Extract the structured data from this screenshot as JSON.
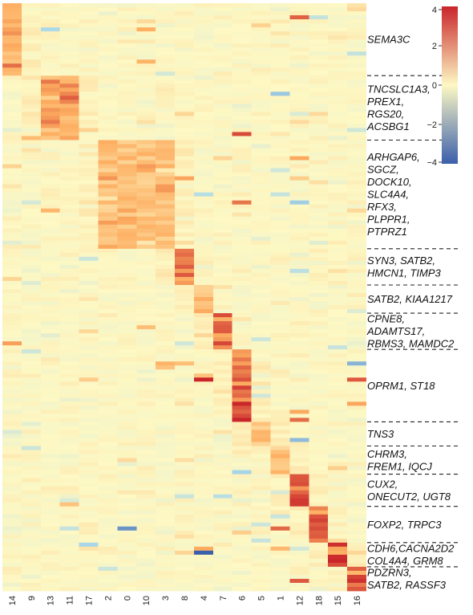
{
  "chart_data": {
    "type": "heatmap",
    "title": "",
    "xlabel": "",
    "ylabel": "",
    "columns": [
      "14",
      "9",
      "13",
      "11",
      "17",
      "2",
      "0",
      "10",
      "3",
      "8",
      "4",
      "7",
      "6",
      "5",
      "1",
      "12",
      "18",
      "15",
      "16"
    ],
    "colorbar": {
      "vmin": -4,
      "vmax": 4,
      "ticks": [
        4,
        2,
        0,
        -2,
        -4
      ],
      "tick_labels": [
        "4",
        "2",
        "0",
        "−2",
        "−4"
      ],
      "colors": {
        "low": "#3a5fab",
        "mid": "#fdf8c4",
        "high": "#c9252a"
      }
    },
    "blocks": [
      {
        "columns": [
          "14"
        ],
        "rows": 18,
        "label_lines": [
          "SEMA3C"
        ],
        "peak": 2.6
      },
      {
        "columns": [
          "13",
          "11"
        ],
        "rows": 16,
        "label_lines": [
          "TNCSLC1A3,",
          "PREX1,",
          "RGS20,",
          "ACSBG1"
        ],
        "peak": 2.8
      },
      {
        "columns": [
          "2",
          "0",
          "10",
          "3"
        ],
        "rows": 27,
        "label_lines": [
          "ARHGAP6,",
          "SGCZ,",
          "DOCK10,",
          "SLC4A4,",
          "RFX3,",
          "PLPPR1,",
          "PTPRZ1"
        ],
        "peak": 2.0
      },
      {
        "columns": [
          "8"
        ],
        "rows": 9,
        "label_lines": [
          "SYN3, SATB2,",
          "HMCN1, TIMP3"
        ],
        "peak": 3.3
      },
      {
        "columns": [
          "4"
        ],
        "rows": 7,
        "label_lines": [
          "SATB2, KIAA1217"
        ],
        "peak": 2.5
      },
      {
        "columns": [
          "7"
        ],
        "rows": 9,
        "label_lines": [
          "CPNE8,",
          "ADAMTS17,",
          "RBMS3, MAMDC2"
        ],
        "peak": 3.4
      },
      {
        "columns": [
          "6"
        ],
        "rows": 18,
        "label_lines": [
          "OPRM1, ST18"
        ],
        "peak": 3.4
      },
      {
        "columns": [
          "5"
        ],
        "rows": 6,
        "label_lines": [
          "TNS3"
        ],
        "peak": 1.6
      },
      {
        "columns": [
          "1"
        ],
        "rows": 7,
        "label_lines": [
          "CHRM3,",
          "FREM1, IQCJ"
        ],
        "peak": 1.7
      },
      {
        "columns": [
          "12"
        ],
        "rows": 8,
        "label_lines": [
          "CUX2,",
          "ONECUT2, UGT8"
        ],
        "peak": 3.7
      },
      {
        "columns": [
          "18"
        ],
        "rows": 9,
        "label_lines": [
          "FOXP2, TRPC3"
        ],
        "peak": 3.8
      },
      {
        "columns": [
          "15"
        ],
        "rows": 6,
        "label_lines": [
          "CDH6,CACNA2D2",
          "COL4A4, GRM8"
        ],
        "peak": 3.9
      },
      {
        "columns": [
          "16"
        ],
        "rows": 6,
        "label_lines": [
          "PDZRN3,",
          "SATB2, RASSF3"
        ],
        "peak": 3.9
      }
    ]
  }
}
